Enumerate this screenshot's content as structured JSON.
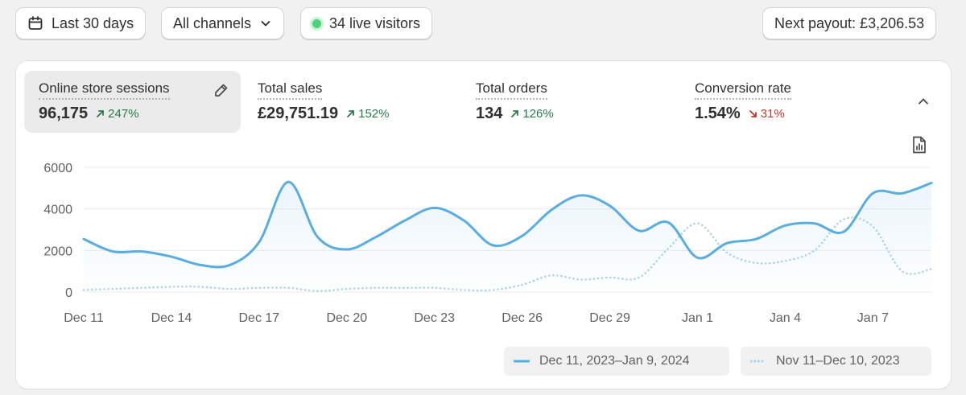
{
  "toolbar": {
    "date_range": "Last 30 days",
    "channels": "All channels",
    "live_visitors": "34 live visitors",
    "payout": "Next payout: £3,206.53"
  },
  "metrics": [
    {
      "label": "Online store sessions",
      "value": "96,175",
      "change": "247%",
      "direction": "up",
      "active": true
    },
    {
      "label": "Total sales",
      "value": "£29,751.19",
      "change": "152%",
      "direction": "up"
    },
    {
      "label": "Total orders",
      "value": "134",
      "change": "126%",
      "direction": "up"
    },
    {
      "label": "Conversion rate",
      "value": "1.54%",
      "change": "31%",
      "direction": "down"
    }
  ],
  "icons": {
    "date": "calendar-icon",
    "channels": "chevron-down-icon",
    "live": "live-dot-icon",
    "edit": "pencil-icon",
    "collapse": "chevron-up-icon",
    "export": "export-report-icon"
  },
  "colors": {
    "primary_series": "#5aade0",
    "comparison_series": "#a6d1ec",
    "up": "#297a4b",
    "down": "#c0392b",
    "live": "#4fd07a"
  },
  "chart_data": {
    "type": "line",
    "x": [
      "Dec 11",
      "Dec 12",
      "Dec 13",
      "Dec 14",
      "Dec 15",
      "Dec 16",
      "Dec 17",
      "Dec 18",
      "Dec 19",
      "Dec 20",
      "Dec 21",
      "Dec 22",
      "Dec 23",
      "Dec 24",
      "Dec 25",
      "Dec 26",
      "Dec 27",
      "Dec 28",
      "Dec 29",
      "Dec 30",
      "Dec 31",
      "Jan 1",
      "Jan 2",
      "Jan 3",
      "Jan 4",
      "Jan 5",
      "Jan 6",
      "Jan 7",
      "Jan 8",
      "Jan 9"
    ],
    "x_ticks": [
      "Dec 11",
      "Dec 14",
      "Dec 17",
      "Dec 20",
      "Dec 23",
      "Dec 26",
      "Dec 29",
      "Jan 1",
      "Jan 4",
      "Jan 7"
    ],
    "y_ticks": [
      "0",
      "2000",
      "4000",
      "6000"
    ],
    "ylim": [
      0,
      6000
    ],
    "grid": true,
    "legend_position": "bottom-right",
    "series": [
      {
        "name": "Dec 11, 2023–Jan 9, 2024",
        "style": "solid",
        "values": [
          2550,
          1950,
          1950,
          1700,
          1300,
          1300,
          2400,
          5300,
          2650,
          2050,
          2650,
          3450,
          4050,
          3450,
          2250,
          2700,
          3950,
          4650,
          4150,
          2950,
          3350,
          1650,
          2350,
          2550,
          3200,
          3300,
          2900,
          4750,
          4750,
          5250
        ]
      },
      {
        "name": "Nov 11–Dec 10, 2023",
        "style": "dotted",
        "values": [
          100,
          150,
          200,
          250,
          250,
          150,
          200,
          200,
          50,
          150,
          200,
          200,
          200,
          100,
          100,
          350,
          800,
          600,
          700,
          700,
          2100,
          3300,
          1900,
          1400,
          1500,
          2000,
          3500,
          3150,
          1000,
          1100
        ]
      }
    ]
  }
}
